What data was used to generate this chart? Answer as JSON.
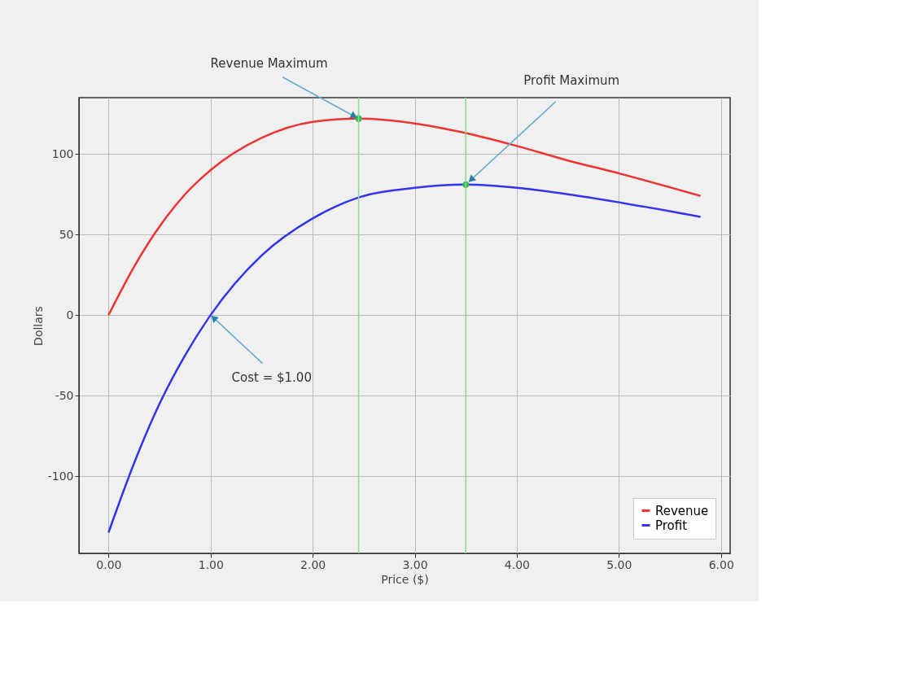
{
  "chart_data": {
    "type": "line",
    "xlabel": "Price ($)",
    "ylabel": "Dollars",
    "x": [
      0,
      0.25,
      0.5,
      0.75,
      1.0,
      1.5,
      2.0,
      2.45,
      3.0,
      3.5,
      4.0,
      4.5,
      5.0,
      5.8
    ],
    "series": [
      {
        "name": "Revenue",
        "color": "#ee3333",
        "values": [
          0,
          30,
          55,
          75,
          90,
          110,
          120,
          122,
          119,
          113,
          105,
          96,
          88,
          74
        ]
      },
      {
        "name": "Profit",
        "color": "#3333ee",
        "values": [
          -135,
          -92,
          -55,
          -25,
          0,
          37,
          60,
          73,
          79,
          81,
          79,
          75,
          70,
          61
        ]
      },
      {
        "type": "scatter",
        "color": "#33bb55",
        "marker": "circle",
        "x": [
          2.45,
          3.5
        ],
        "values": [
          122,
          81
        ]
      }
    ],
    "ref_lines": [
      {
        "axis": "x",
        "value": 2.45,
        "color": "#88dd88"
      },
      {
        "axis": "x",
        "value": 3.5,
        "color": "#88dd88"
      }
    ],
    "annotations": [
      {
        "text": "Revenue Maximum",
        "x": 2.45,
        "y": 122
      },
      {
        "text": "Profit Maximum",
        "x": 3.5,
        "y": 81
      },
      {
        "text": "Cost = $1.00",
        "x": 1.0,
        "y": 0
      }
    ],
    "xlim": [
      -0.29,
      6.09
    ],
    "ylim": [
      -148,
      135
    ],
    "xticks": [
      {
        "value": 0,
        "label": "0.00"
      },
      {
        "value": 1,
        "label": "1.00"
      },
      {
        "value": 2,
        "label": "2.00"
      },
      {
        "value": 3,
        "label": "3.00"
      },
      {
        "value": 4,
        "label": "4.00"
      },
      {
        "value": 5,
        "label": "5.00"
      },
      {
        "value": 6,
        "label": "6.00"
      }
    ],
    "yticks": [
      -100,
      -50,
      0,
      50,
      100
    ],
    "grid": true,
    "legend": "bottom right",
    "marker": "none",
    "line_style": "solid"
  }
}
